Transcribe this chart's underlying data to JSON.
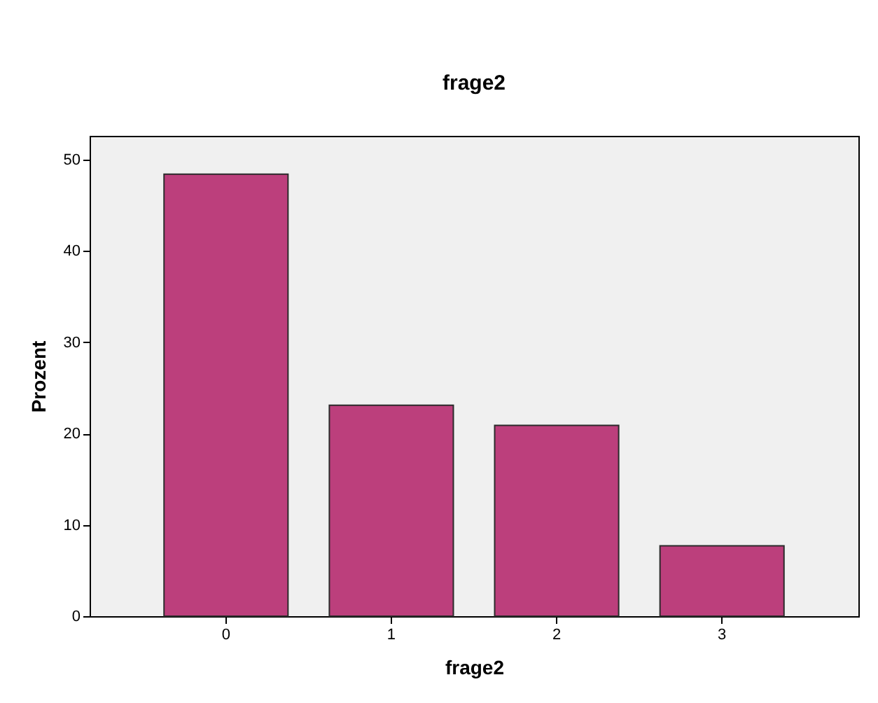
{
  "chart_data": {
    "type": "bar",
    "title": "frage2",
    "xlabel": "frage2",
    "ylabel": "Prozent",
    "categories": [
      "0",
      "1",
      "2",
      "3"
    ],
    "values": [
      48.4,
      23.1,
      20.9,
      7.7
    ],
    "color": "#bc3f7c",
    "ylim": [
      0,
      52.6
    ],
    "yticks": [
      0,
      10,
      20,
      30,
      40,
      50
    ],
    "grid": false
  }
}
